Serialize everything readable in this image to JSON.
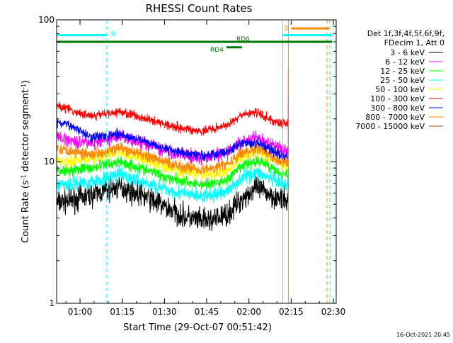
{
  "chart_data": {
    "type": "line",
    "title": "RHESSI Count Rates",
    "xlabel": "Start Time (29-Oct-07 00:51:42)",
    "ylabel": "Count Rate (s⁻¹ detector segment⁻¹)",
    "ylabel_base": "Count Rate (s",
    "ylabel_mid": " detector segment",
    "ylabel_end": ")",
    "ylabel_sup": "-1",
    "yscale": "log",
    "xlim": [
      "00:51:42",
      "02:31:00"
    ],
    "ylim": [
      1,
      100
    ],
    "x_ticks": [
      "01:00",
      "01:15",
      "01:30",
      "01:45",
      "02:00",
      "02:15",
      "02:30"
    ],
    "y_ticks": [
      "1",
      "10",
      "100"
    ],
    "y_tick_values": [
      1,
      10,
      100
    ],
    "legend_position": "right",
    "legend_header": [
      "Det 1f,3f,4f,5f,6f,9f,",
      "FDecim 1, Att 0"
    ],
    "series": [
      {
        "name": "3 - 6 keV",
        "color": "#000000",
        "profile": [
          5.1,
          5.4,
          5.8,
          6.6,
          5.8,
          4.8,
          4.1,
          3.8,
          3.9,
          4.3,
          5.6,
          6.5,
          5.8,
          5.3
        ]
      },
      {
        "name": "6 - 12 keV",
        "color": "#ff00ff",
        "profile": null
      },
      {
        "name": "12 - 25 keV",
        "color": "#00ff00",
        "profile": [
          8.6,
          8.8,
          9.0,
          10.0,
          8.9,
          7.9,
          7.2,
          6.9,
          7.0,
          7.6,
          9.4,
          10.2,
          9.1,
          8.2
        ]
      },
      {
        "name": "25 - 50 keV",
        "color": "#00ffff",
        "profile": [
          6.9,
          7.0,
          7.2,
          8.1,
          7.2,
          6.4,
          5.9,
          5.7,
          5.8,
          6.3,
          7.8,
          8.4,
          7.5,
          6.8
        ]
      },
      {
        "name": "50 - 100 keV",
        "color": "#ffff00",
        "profile": [
          10.0,
          10.2,
          10.5,
          11.6,
          10.4,
          9.2,
          8.4,
          8.1,
          8.2,
          8.9,
          10.9,
          11.8,
          10.6,
          9.5
        ]
      },
      {
        "name": "100 - 300 keV",
        "color": "#ff0000",
        "profile": [
          25.0,
          22.5,
          21.0,
          22.5,
          20.5,
          18.5,
          17.0,
          16.5,
          17.0,
          18.5,
          21.5,
          22.0,
          19.5,
          18.5
        ]
      },
      {
        "name": "300 - 800 keV",
        "color": "#0000ff",
        "profile": [
          19.0,
          17.5,
          15.0,
          15.5,
          14.0,
          12.5,
          11.5,
          11.0,
          11.2,
          12.0,
          13.5,
          13.5,
          12.0,
          11.0
        ]
      },
      {
        "name": "800 - 7000 keV",
        "color": "#ff8800",
        "profile": [
          12.5,
          11.8,
          11.3,
          12.4,
          11.2,
          10.0,
          9.2,
          8.8,
          9.0,
          9.8,
          11.6,
          12.4,
          11.0,
          9.8
        ]
      },
      {
        "name": "7000 - 15000 keV",
        "color": "#885500",
        "profile": null
      }
    ],
    "profile_times": [
      "00:51:42",
      "00:58",
      "01:04",
      "01:14",
      "01:22",
      "01:30",
      "01:37",
      "01:43",
      "01:48",
      "01:53",
      "01:58",
      "02:03",
      "02:08",
      "02:12"
    ],
    "pink_profile": [
      15.0,
      14.0,
      13.5,
      15.0,
      13.5,
      12.0,
      11.0,
      10.6,
      10.9,
      11.8,
      14.0,
      14.6,
      13.0,
      12.0
    ],
    "annotations": [
      {
        "label": "N",
        "color": "#00ffff",
        "bar_start": "00:51:42",
        "bar_end": "01:09:30",
        "level": 78
      },
      {
        "label": "S",
        "color": "#ff8800",
        "bar_start": "02:15:00",
        "bar_end": "02:28:30",
        "level": 87
      },
      {
        "label": "",
        "color": "#00ffff",
        "bar_start": "02:12:00",
        "bar_end": "02:29:30",
        "level": 78
      },
      {
        "label": "RD0",
        "color": "#007700",
        "bar_start": "00:51:42",
        "bar_end": "02:29:30",
        "level": 70
      },
      {
        "label": "RD4",
        "color": "#007700",
        "bar_start": "01:52:00",
        "bar_end": "01:57:30",
        "level": 64
      }
    ],
    "vertical_lines": [
      {
        "time": "01:09:30",
        "color": "#00ffff",
        "style": "dashed"
      },
      {
        "time": "02:12:00",
        "color": "#00ffff",
        "style": "solid"
      },
      {
        "time": "02:14:00",
        "color": "#ff8800",
        "style": "solid"
      },
      {
        "time": "02:27:45",
        "color": "#ff8800",
        "style": "dashed"
      },
      {
        "time": "02:28:45",
        "color": "#00ffff",
        "style": "dashed"
      },
      {
        "time": "00:51:42",
        "color": "#00ffff",
        "style": "solid"
      }
    ],
    "data_end": "02:14:00",
    "timestamp": "16-Oct-2021 20:45"
  }
}
